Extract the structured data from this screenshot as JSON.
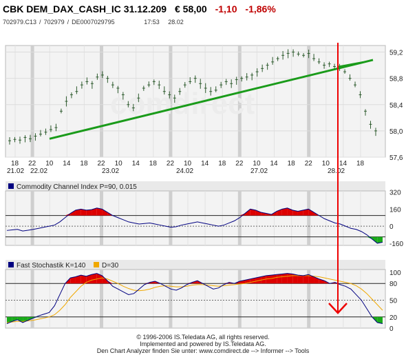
{
  "header": {
    "name": "CBK DEM_DAX_CASH_IC 31.12.209",
    "price": "€ 58,00",
    "change": "-1,10",
    "change_pct": "-1,86%",
    "ids": "702979.C13",
    "sep1": "/",
    "id2": "702979",
    "sep2": "/",
    "isin": "DE0007029795",
    "time": "17:53",
    "date": "28.02"
  },
  "colors": {
    "candle": "#2e5b2e",
    "trend": "#1a9b1a",
    "cci_line": "#000080",
    "stoch_k": "#000080",
    "stoch_d": "#f0a800",
    "fill_red": "#dd0000",
    "fill_green": "#1aaa1a",
    "arrow": "#ee0000",
    "panel_bg": "#f3f3f3",
    "label_bg": "#e9e9e9"
  },
  "chart_data": [
    {
      "type": "line",
      "title": "",
      "y_ticks": [
        "59,2",
        "58,8",
        "58,4",
        "58,0",
        "57,6"
      ],
      "y_tick_values": [
        59.2,
        58.8,
        58.4,
        58.0,
        57.6
      ],
      "ylim": [
        57.6,
        59.3
      ],
      "x_hour_labels": [
        "18",
        "22",
        "10",
        "14",
        "18",
        "22",
        "10",
        "14",
        "18",
        "22",
        "10",
        "14",
        "18",
        "22",
        "10",
        "14",
        "18",
        "22",
        "10",
        "14",
        "18"
      ],
      "x_date_labels": [
        "21.02",
        "22.02",
        "23.02",
        "24.02",
        "27.02",
        "28.02"
      ],
      "series": [
        {
          "values": [
            57.85,
            57.87,
            57.86,
            57.9,
            57.88,
            57.92,
            57.95,
            57.98,
            58.02,
            58.05,
            58.3,
            58.45,
            58.55,
            58.6,
            58.7,
            58.75,
            58.72,
            58.82,
            58.85,
            58.8,
            58.7,
            58.65,
            58.55,
            58.4,
            58.35,
            58.5,
            58.65,
            58.7,
            58.75,
            58.7,
            58.6,
            58.55,
            58.5,
            58.6,
            58.7,
            58.75,
            58.8,
            58.72,
            58.65,
            58.6,
            58.62,
            58.7,
            58.75,
            58.72,
            58.78,
            58.8,
            58.82,
            58.85,
            58.9,
            58.95,
            59.0,
            59.05,
            59.1,
            59.15,
            59.18,
            59.2,
            59.17,
            59.15,
            59.18,
            59.1,
            59.05,
            59.0,
            59.02,
            58.98,
            58.95,
            58.9,
            58.8,
            58.7,
            58.55,
            58.3,
            58.1,
            58.0
          ]
        }
      ],
      "trendlines": [
        {
          "from": [
            "22.02 14",
            57.88
          ],
          "to": [
            "28.02 18",
            59.08
          ]
        },
        {
          "from": [
            "27.02 22",
            58.98
          ],
          "to": [
            "28.02 14",
            59.05
          ]
        }
      ]
    },
    {
      "type": "area",
      "title": "Commodity Channel Index P=90, 0.015",
      "y_ticks": [
        "320",
        "160",
        "0",
        "-160"
      ],
      "y_tick_values": [
        320,
        160,
        0,
        -160
      ],
      "ylim": [
        -180,
        330
      ],
      "reference_lines": [
        100,
        -100
      ],
      "series": [
        {
          "values": [
            -40,
            -35,
            -30,
            -45,
            -38,
            -30,
            -20,
            -10,
            0,
            10,
            40,
            80,
            120,
            150,
            160,
            150,
            155,
            170,
            160,
            130,
            100,
            80,
            60,
            40,
            30,
            20,
            25,
            30,
            20,
            10,
            0,
            -10,
            -5,
            10,
            20,
            30,
            40,
            30,
            20,
            10,
            0,
            10,
            30,
            50,
            80,
            120,
            160,
            150,
            130,
            120,
            110,
            140,
            160,
            170,
            150,
            140,
            150,
            160,
            130,
            100,
            70,
            50,
            30,
            20,
            0,
            -20,
            -30,
            -50,
            -80,
            -120,
            -160,
            -150
          ]
        }
      ]
    },
    {
      "type": "area",
      "title": "Fast Stochastik K=140",
      "legend": [
        {
          "name": "Fast Stochastik K=140"
        },
        {
          "name": "D=30"
        }
      ],
      "y_ticks": [
        "100",
        "80",
        "50",
        "20",
        "0"
      ],
      "y_tick_values": [
        100,
        80,
        50,
        20,
        0
      ],
      "ylim": [
        0,
        105
      ],
      "reference_lines": [
        80,
        20
      ],
      "series": [
        {
          "name": "K",
          "values": [
            8,
            12,
            15,
            10,
            14,
            18,
            22,
            25,
            28,
            40,
            60,
            80,
            90,
            92,
            95,
            93,
            96,
            98,
            94,
            85,
            75,
            70,
            65,
            60,
            62,
            70,
            78,
            82,
            84,
            80,
            75,
            70,
            68,
            72,
            78,
            82,
            85,
            80,
            75,
            70,
            72,
            78,
            82,
            80,
            84,
            86,
            88,
            90,
            92,
            94,
            95,
            96,
            97,
            98,
            97,
            95,
            94,
            96,
            92,
            88,
            85,
            80,
            82,
            78,
            75,
            70,
            60,
            50,
            35,
            20,
            10,
            8
          ]
        },
        {
          "name": "D",
          "values": [
            10,
            11,
            12,
            12,
            13,
            14,
            16,
            18,
            20,
            24,
            32,
            42,
            55,
            65,
            75,
            82,
            86,
            88,
            90,
            88,
            84,
            80,
            75,
            71,
            68,
            67,
            68,
            70,
            73,
            75,
            76,
            75,
            74,
            74,
            75,
            77,
            78,
            78,
            77,
            76,
            75,
            76,
            77,
            78,
            79,
            80,
            82,
            84,
            86,
            88,
            89,
            91,
            92,
            93,
            94,
            94,
            94,
            94,
            93,
            92,
            90,
            88,
            86,
            84,
            82,
            80,
            76,
            70,
            62,
            52,
            42,
            32
          ]
        }
      ]
    }
  ],
  "footer": {
    "line1": "© 1996-2006 IS.Teledata AG, all rights reserved.",
    "line2": "Implemented and powered by IS.Teledata AG.",
    "line3": "Den Chart Analyzer finden Sie unter: www.comdirect.de --> Informer --> Tools"
  }
}
